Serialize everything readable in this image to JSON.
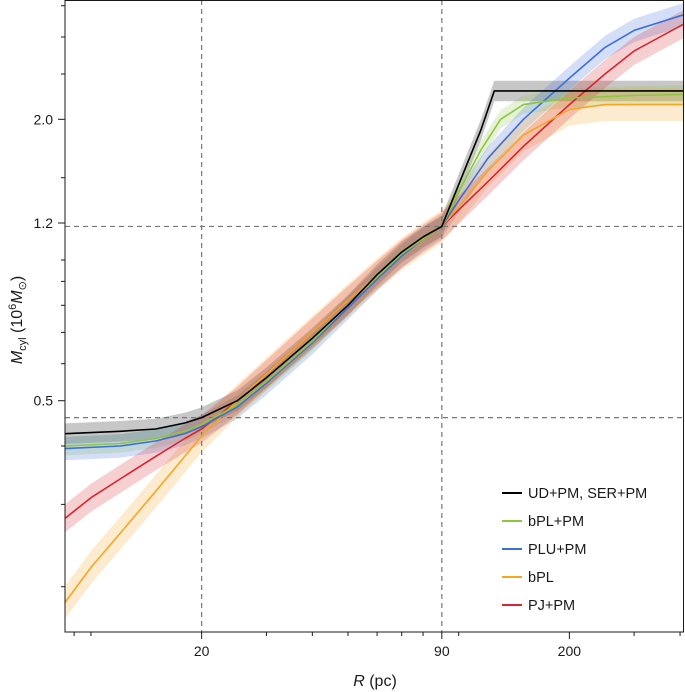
{
  "chart_data": {
    "type": "line",
    "xlabel": "R (pc)",
    "ylabel": "M_cyl (10^6 M_⊙)",
    "xscale": "log",
    "yscale": "log",
    "xlim": [
      8.5,
      410
    ],
    "ylim": [
      0.16,
      3.6
    ],
    "xticks": [
      {
        "value": 20,
        "label": "20"
      },
      {
        "value": 90,
        "label": "90"
      },
      {
        "value": 200,
        "label": "200"
      }
    ],
    "yticks": [
      {
        "value": 0.5,
        "label": "0.5"
      },
      {
        "value": 1.2,
        "label": "1.2"
      },
      {
        "value": 2.0,
        "label": "2.0"
      }
    ],
    "reference_lines": {
      "vertical": [
        20,
        90
      ],
      "horizontal": [
        0.46,
        1.18
      ]
    },
    "grid": false,
    "legend_position": "bottom-right",
    "series": [
      {
        "name": "UD+PM, SER+PM",
        "color": "#000000",
        "points": [
          [
            8.5,
            0.425
          ],
          [
            12,
            0.43
          ],
          [
            15,
            0.435
          ],
          [
            18,
            0.448
          ],
          [
            20,
            0.46
          ],
          [
            25,
            0.5
          ],
          [
            30,
            0.56
          ],
          [
            40,
            0.68
          ],
          [
            50,
            0.8
          ],
          [
            60,
            0.93
          ],
          [
            70,
            1.04
          ],
          [
            80,
            1.12
          ],
          [
            90,
            1.18
          ],
          [
            100,
            1.45
          ],
          [
            115,
            1.9
          ],
          [
            125,
            2.3
          ],
          [
            140,
            2.3
          ],
          [
            200,
            2.3
          ],
          [
            300,
            2.3
          ],
          [
            410,
            2.3
          ]
        ]
      },
      {
        "name": "bPL+PM",
        "color": "#8ec63f",
        "points": [
          [
            8.5,
            0.4
          ],
          [
            12,
            0.405
          ],
          [
            15,
            0.415
          ],
          [
            18,
            0.43
          ],
          [
            20,
            0.445
          ],
          [
            25,
            0.49
          ],
          [
            30,
            0.55
          ],
          [
            40,
            0.67
          ],
          [
            50,
            0.8
          ],
          [
            60,
            0.92
          ],
          [
            70,
            1.03
          ],
          [
            80,
            1.11
          ],
          [
            90,
            1.18
          ],
          [
            100,
            1.4
          ],
          [
            115,
            1.72
          ],
          [
            130,
            2.0
          ],
          [
            150,
            2.15
          ],
          [
            200,
            2.22
          ],
          [
            300,
            2.25
          ],
          [
            410,
            2.26
          ]
        ]
      },
      {
        "name": "PLU+PM",
        "color": "#3d6fd9",
        "points": [
          [
            8.5,
            0.395
          ],
          [
            12,
            0.4
          ],
          [
            15,
            0.41
          ],
          [
            18,
            0.425
          ],
          [
            20,
            0.44
          ],
          [
            25,
            0.485
          ],
          [
            30,
            0.545
          ],
          [
            40,
            0.665
          ],
          [
            50,
            0.79
          ],
          [
            60,
            0.91
          ],
          [
            70,
            1.02
          ],
          [
            80,
            1.11
          ],
          [
            90,
            1.18
          ],
          [
            100,
            1.34
          ],
          [
            120,
            1.65
          ],
          [
            150,
            2.0
          ],
          [
            200,
            2.45
          ],
          [
            250,
            2.85
          ],
          [
            300,
            3.1
          ],
          [
            410,
            3.35
          ]
        ]
      },
      {
        "name": "bPL",
        "color": "#f5a623",
        "points": [
          [
            8.5,
            0.185
          ],
          [
            10,
            0.22
          ],
          [
            12,
            0.26
          ],
          [
            15,
            0.32
          ],
          [
            18,
            0.38
          ],
          [
            20,
            0.42
          ],
          [
            25,
            0.5
          ],
          [
            30,
            0.57
          ],
          [
            40,
            0.7
          ],
          [
            50,
            0.82
          ],
          [
            60,
            0.93
          ],
          [
            70,
            1.03
          ],
          [
            80,
            1.11
          ],
          [
            90,
            1.18
          ],
          [
            100,
            1.3
          ],
          [
            120,
            1.55
          ],
          [
            150,
            1.85
          ],
          [
            200,
            2.1
          ],
          [
            250,
            2.15
          ],
          [
            410,
            2.15
          ]
        ]
      },
      {
        "name": "PJ+PM",
        "color": "#d8252f",
        "points": [
          [
            8.5,
            0.28
          ],
          [
            10,
            0.31
          ],
          [
            12,
            0.34
          ],
          [
            15,
            0.38
          ],
          [
            18,
            0.415
          ],
          [
            20,
            0.435
          ],
          [
            25,
            0.5
          ],
          [
            30,
            0.57
          ],
          [
            40,
            0.7
          ],
          [
            50,
            0.82
          ],
          [
            60,
            0.93
          ],
          [
            70,
            1.03
          ],
          [
            80,
            1.11
          ],
          [
            90,
            1.18
          ],
          [
            100,
            1.28
          ],
          [
            120,
            1.47
          ],
          [
            150,
            1.75
          ],
          [
            200,
            2.15
          ],
          [
            250,
            2.5
          ],
          [
            300,
            2.8
          ],
          [
            410,
            3.2
          ]
        ]
      }
    ]
  }
}
